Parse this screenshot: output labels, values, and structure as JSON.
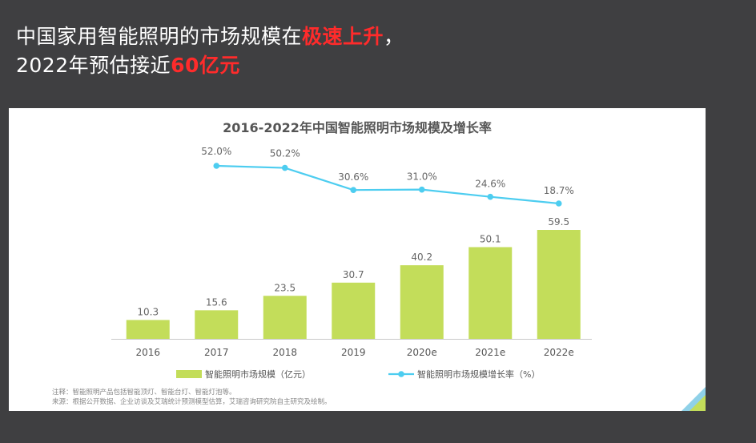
{
  "headline": {
    "line1_prefix": "中国家用智能照明的市场规模在",
    "line1_highlight": "极速上升",
    "line1_suffix": "，",
    "line2_prefix": "2022年预估接近",
    "line2_highlight": "60亿元"
  },
  "chart_data": {
    "type": "bar",
    "title": "2016-2022年中国智能照明市场规模及增长率",
    "categories": [
      "2016",
      "2017",
      "2018",
      "2019",
      "2020e",
      "2021e",
      "2022e"
    ],
    "series": [
      {
        "name": "智能照明市场规模（亿元）",
        "type": "bar",
        "values": [
          10.3,
          15.6,
          23.5,
          30.7,
          40.2,
          50.1,
          59.5
        ],
        "value_labels": [
          "10.3",
          "15.6",
          "23.5",
          "30.7",
          "40.2",
          "50.1",
          "59.5"
        ],
        "color": "#c3dd5a"
      },
      {
        "name": "智能照明市场规模增长率（%）",
        "type": "line",
        "values": [
          null,
          52.0,
          50.2,
          30.6,
          31.0,
          24.6,
          18.7
        ],
        "value_labels": [
          null,
          "52.0%",
          "50.2%",
          "30.6%",
          "31.0%",
          "24.6%",
          "18.7%"
        ],
        "color": "#4dcdf0"
      }
    ],
    "legend_position": "bottom",
    "grid": false
  },
  "notes": {
    "line1": "注释：智能照明产品包括智能顶灯、智能台灯、智能灯泡等。",
    "line2": "来源：根据公开数据、企业访谈及艾瑞统计预测模型估算，艾瑞咨询研究院自主研究及绘制。"
  },
  "colors": {
    "background": "#3f3f41",
    "highlight": "#ff2b2b",
    "bar": "#c3dd5a",
    "line": "#4dcdf0"
  }
}
